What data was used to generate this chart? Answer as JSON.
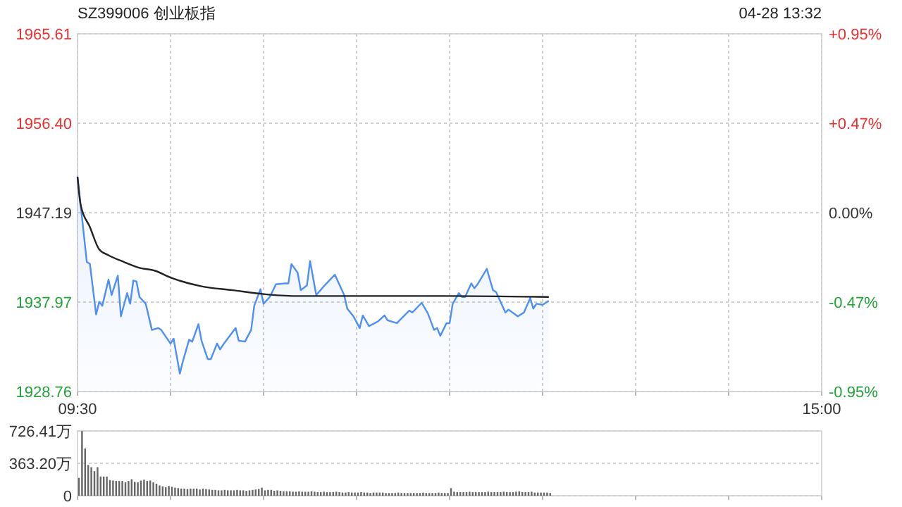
{
  "chart_data": [
    {
      "type": "line",
      "title": "SZ399006 创业板指",
      "annotations": [
        "04-28 13:32"
      ],
      "categories": [
        "09:30",
        null,
        null,
        null,
        null,
        null,
        null,
        null,
        null,
        null,
        null,
        null,
        null,
        null,
        null,
        null,
        null,
        null,
        null,
        null,
        null,
        null,
        null,
        null,
        null,
        null,
        null,
        null,
        null,
        null,
        null,
        null,
        null,
        null,
        null,
        null,
        null,
        null,
        null,
        null,
        null,
        null,
        null,
        null,
        null,
        null,
        null,
        null,
        null,
        null,
        null,
        null,
        null,
        null,
        null,
        null,
        null,
        null,
        null,
        null,
        null,
        null,
        null,
        null,
        null,
        null,
        null,
        null,
        null,
        null,
        null,
        null,
        null,
        null,
        null,
        null,
        null,
        null,
        null,
        null,
        null,
        null,
        null,
        null,
        null,
        null,
        null,
        null,
        null,
        null,
        null,
        null,
        null,
        null,
        null,
        null,
        null,
        null,
        null,
        null,
        null,
        null,
        null,
        null,
        null,
        null,
        null,
        null,
        null,
        null,
        null,
        null,
        null,
        null,
        null,
        null,
        null,
        null,
        null,
        null,
        null,
        null,
        null,
        null,
        null,
        null,
        null,
        null,
        null,
        null,
        null,
        null,
        null,
        null,
        null,
        null,
        null,
        null,
        null,
        null,
        null,
        null,
        null,
        null,
        null,
        null,
        null,
        null,
        null,
        null,
        null,
        null,
        null,
        null,
        null,
        null,
        null,
        null,
        null,
        null,
        null,
        null,
        null,
        null,
        null,
        null,
        null,
        null,
        null,
        null,
        null,
        null,
        null,
        null,
        null,
        null,
        null,
        null,
        null,
        null,
        null,
        null,
        null,
        null,
        null,
        null,
        null,
        null,
        null,
        null,
        null,
        null,
        null,
        null,
        null,
        null,
        null,
        null,
        null,
        null,
        null,
        null,
        null,
        null,
        null,
        null,
        null,
        null,
        null,
        null,
        null,
        null,
        null,
        null,
        null,
        null,
        null,
        null,
        null,
        null,
        null,
        null,
        null,
        null,
        null,
        null,
        null,
        null,
        null,
        null,
        null,
        null,
        null,
        null,
        null,
        null,
        null,
        null,
        null,
        null,
        "15:00"
      ],
      "ylim": [
        1928.76,
        1965.61
      ],
      "yticks": [
        1928.76,
        1937.97,
        1947.19,
        {
          "value": 1956.4,
          "label": "1956.40"
        },
        1965.61
      ],
      "y2lim": [
        -0.946,
        0.946
      ],
      "y2ticks": [
        {
          "value": -0.946,
          "label": "-0.95%"
        },
        {
          "value": -0.473,
          "label": "-0.47%"
        },
        {
          "value": 0,
          "label": "0.00%"
        },
        {
          "value": 0.473,
          "label": "+0.47%"
        },
        {
          "value": 0.946,
          "label": "+0.95%"
        }
      ],
      "grid": true,
      "series": [
        {
          "type": "area",
          "color": "#4e8ef7",
          "values": [
            1950.9,
            1948.0,
            null,
            1942.1,
            1941.9,
            null,
            1936.7,
            1938.0,
            1937.6,
            null,
            1940.3,
            1938.7,
            null,
            1940.7,
            1936.5,
            null,
            1938.9,
            1937.8,
            1940.2,
            1940.1,
            1938.5,
            null,
            1937.8,
            null,
            1935.1,
            null,
            1935.3,
            1935.1,
            null,
            null,
            1933.7,
            1934.2,
            null,
            1930.6,
            1931.9,
            null,
            1934.1,
            1933.9,
            null,
            1935.7,
            1934.0,
            null,
            1932.1,
            1932.1,
            null,
            1933.7,
            1933.1,
            1933.6,
            null,
            null,
            null,
            1935.3,
            1934.0,
            null,
            1933.9,
            null,
            1935.1,
            1937.6,
            null,
            1939.3,
            1937.8,
            null,
            1938.5,
            null,
            1939.8,
            null,
            null,
            1939.9,
            1939.9,
            1941.9,
            null,
            1941.0,
            1939.2,
            null,
            1939.7,
            1942.2,
            null,
            1938.7,
            null,
            null,
            1939.8,
            null,
            null,
            1940.8,
            1940.1,
            null,
            1938.7,
            1937.3,
            null,
            1936.5,
            null,
            1935.3,
            1936.6,
            null,
            1935.5,
            null,
            null,
            1936.0,
            null,
            1936.6,
            1936.1,
            null,
            null,
            1935.8,
            null,
            null,
            null,
            1937.1,
            1936.9,
            null,
            null,
            1937.9,
            null,
            1936.8,
            null,
            1935.1,
            1935.3,
            1934.5,
            null,
            1935.8,
            1935.8,
            1937.8,
            null,
            1938.9,
            1938.5,
            1938.5,
            null,
            1939.9,
            1939.4,
            1939.8,
            null,
            null,
            1941.4,
            null,
            1939.2,
            1939.0,
            null,
            null,
            1936.9,
            1937.2,
            null,
            null,
            1936.5,
            null,
            1936.9,
            null,
            1938.4,
            1937.3,
            1937.8,
            null,
            1937.7,
            null,
            1938.1,
            null,
            null,
            null,
            null,
            null,
            null,
            null,
            null,
            null,
            null,
            null,
            null,
            null,
            null,
            null,
            null,
            null,
            null,
            null,
            null,
            null,
            null,
            null,
            null,
            null,
            null,
            null,
            null,
            null,
            null,
            null,
            null,
            null,
            null,
            null,
            null,
            null,
            null,
            null,
            null,
            null,
            null,
            null,
            null,
            null,
            null,
            null,
            null,
            null,
            null,
            null,
            null,
            null,
            null,
            null,
            null,
            null,
            null,
            null,
            null,
            null,
            null,
            null,
            null,
            null,
            null,
            null,
            null,
            null,
            null,
            null,
            null,
            null,
            null,
            null,
            null,
            null,
            null,
            null,
            null,
            null,
            null,
            null,
            null,
            null,
            null,
            null,
            null
          ]
        },
        {
          "type": "line",
          "color": "#222222",
          "values": [
            1950.9,
            1948.0,
            null,
            null,
            1945.7,
            null,
            null,
            1943.4,
            null,
            null,
            1942.8,
            null,
            null,
            null,
            null,
            1942.1,
            null,
            null,
            null,
            null,
            1941.5,
            null,
            null,
            null,
            null,
            1941.2,
            null,
            null,
            null,
            null,
            1940.5,
            null,
            null,
            null,
            null,
            null,
            null,
            null,
            null,
            null,
            1939.6,
            null,
            null,
            null,
            null,
            null,
            null,
            null,
            null,
            null,
            1939.2,
            null,
            null,
            null,
            null,
            null,
            null,
            null,
            null,
            null,
            1938.8,
            null,
            null,
            null,
            null,
            null,
            null,
            null,
            null,
            null,
            1938.6,
            null,
            null,
            null,
            null,
            null,
            null,
            null,
            null,
            null,
            1938.6,
            null,
            null,
            null,
            null,
            null,
            null,
            null,
            null,
            null,
            1938.6,
            null,
            null,
            null,
            null,
            null,
            null,
            null,
            null,
            null,
            null,
            null,
            null,
            null,
            null,
            null,
            null,
            null,
            null,
            null,
            null,
            null,
            null,
            null,
            null,
            null,
            null,
            null,
            null,
            null,
            1938.6,
            null,
            null,
            null,
            null,
            null,
            null,
            null,
            null,
            null,
            null,
            null,
            null,
            null,
            null,
            null,
            null,
            null,
            null,
            null,
            null,
            null,
            null,
            null,
            null,
            null,
            null,
            null,
            null,
            null,
            null,
            null,
            1938.5,
            null,
            null,
            null,
            null,
            null,
            null,
            null,
            null,
            null,
            null,
            null,
            null,
            null,
            null,
            null,
            null,
            null,
            null,
            null,
            null,
            null,
            null,
            null,
            null,
            null,
            null,
            null,
            null,
            null,
            null,
            null,
            null,
            null,
            null,
            null,
            null,
            null,
            null,
            null,
            null,
            null,
            null,
            null,
            null,
            null,
            null,
            null,
            null,
            null,
            null,
            null,
            null,
            null,
            null,
            null,
            null,
            null,
            null,
            null,
            null,
            null,
            null,
            null,
            null,
            null,
            null,
            null,
            null,
            null,
            null,
            null,
            null,
            null,
            null,
            null,
            null,
            null,
            null,
            null,
            null,
            null,
            null,
            null,
            null,
            null,
            null,
            null,
            null
          ]
        }
      ]
    },
    {
      "type": "bar",
      "categories": [
        null,
        null,
        null,
        null,
        null,
        null,
        null,
        null,
        null,
        null,
        null,
        null,
        null,
        null,
        null,
        null,
        null,
        null,
        null,
        null,
        null,
        null,
        null,
        null,
        null,
        null,
        null,
        null,
        null,
        null,
        null,
        null,
        null,
        null,
        null,
        null,
        null,
        null,
        null,
        null,
        null,
        null,
        null,
        null,
        null,
        null,
        null,
        null,
        null,
        null,
        null,
        null,
        null,
        null,
        null,
        null,
        null,
        null,
        null,
        null,
        null,
        null,
        null,
        null,
        null,
        null,
        null,
        null,
        null,
        null,
        null,
        null,
        null,
        null,
        null,
        null,
        null,
        null,
        null,
        null,
        null,
        null,
        null,
        null,
        null,
        null,
        null,
        null,
        null,
        null,
        null,
        null,
        null,
        null,
        null,
        null,
        null,
        null,
        null,
        null,
        null,
        null,
        null,
        null,
        null,
        null,
        null,
        null,
        null,
        null,
        null,
        null,
        null,
        null,
        null,
        null,
        null,
        null,
        null,
        null,
        null,
        null,
        null,
        null,
        null,
        null,
        null,
        null,
        null,
        null,
        null,
        null,
        null,
        null,
        null,
        null,
        null,
        null,
        null,
        null,
        null,
        null,
        null,
        null,
        null,
        null,
        null,
        null,
        null,
        null,
        null,
        null,
        null,
        null,
        null,
        null,
        null,
        null,
        null,
        null,
        null,
        null,
        null,
        null,
        null,
        null,
        null,
        null,
        null,
        null,
        null,
        null,
        null,
        null,
        null,
        null,
        null,
        null,
        null,
        null,
        null,
        null,
        null,
        null,
        null,
        null,
        null,
        null,
        null,
        null,
        null,
        null,
        null,
        null,
        null,
        null,
        null,
        null,
        null,
        null,
        null,
        null,
        null,
        null,
        null,
        null,
        null,
        null,
        null,
        null,
        null,
        null,
        null,
        null,
        null,
        null,
        null,
        null,
        null,
        null,
        null,
        null,
        null,
        null,
        null,
        null,
        null,
        null,
        null,
        null,
        null,
        null,
        null,
        null,
        null,
        null,
        null,
        null,
        null,
        null,
        null
      ],
      "ylim": [
        0,
        726.41
      ],
      "yticks": [
        0,
        {
          "value": 363.2,
          "label": "363.20万"
        },
        {
          "value": 726.41,
          "label": "726.41万"
        }
      ],
      "grid": "y",
      "tick_labels": "y",
      "series": [
        {
          "color": "#666666",
          "values": [
            200,
            725,
            530,
            345,
            320,
            275,
            320,
            215,
            215,
            215,
            175,
            170,
            165,
            165,
            165,
            150,
            165,
            185,
            155,
            150,
            170,
            180,
            165,
            170,
            150,
            135,
            115,
            105,
            95,
            110,
            100,
            90,
            85,
            80,
            80,
            75,
            80,
            80,
            80,
            70,
            80,
            75,
            70,
            65,
            65,
            60,
            60,
            65,
            60,
            60,
            60,
            65,
            60,
            60,
            55,
            60,
            65,
            70,
            75,
            90,
            60,
            65,
            65,
            55,
            60,
            55,
            50,
            50,
            50,
            45,
            45,
            50,
            45,
            45,
            45,
            50,
            45,
            40,
            40,
            45,
            40,
            40,
            40,
            45,
            40,
            35,
            35,
            40,
            35,
            35,
            35,
            40,
            35,
            35,
            30,
            35,
            35,
            35,
            35,
            30,
            30,
            30,
            30,
            35,
            30,
            30,
            30,
            30,
            30,
            30,
            30,
            35,
            30,
            30,
            30,
            30,
            35,
            30,
            30,
            30,
            85,
            45,
            40,
            40,
            40,
            40,
            45,
            40,
            40,
            40,
            40,
            40,
            45,
            40,
            40,
            40,
            40,
            45,
            40,
            40,
            40,
            45,
            50,
            40,
            40,
            40,
            45,
            35,
            35,
            35,
            35,
            35,
            30,
            null,
            null,
            null,
            null,
            null,
            null,
            null,
            null,
            null,
            null,
            null,
            null,
            null,
            null,
            null,
            null,
            null,
            null,
            null,
            null,
            null,
            null,
            null,
            null,
            null,
            null,
            null,
            null,
            null,
            null,
            null,
            null,
            null,
            null,
            null,
            null,
            null,
            null,
            null,
            null,
            null,
            null,
            null,
            null,
            null,
            null,
            null,
            null,
            null,
            null,
            null,
            null,
            null,
            null,
            null,
            null,
            null,
            null,
            null,
            null,
            null,
            null,
            null,
            null,
            null,
            null,
            null,
            null,
            null,
            null,
            null,
            null,
            null,
            null,
            null,
            null,
            null,
            null,
            null,
            null,
            null,
            null,
            null,
            null,
            null,
            null,
            null,
            null
          ]
        }
      ]
    }
  ]
}
